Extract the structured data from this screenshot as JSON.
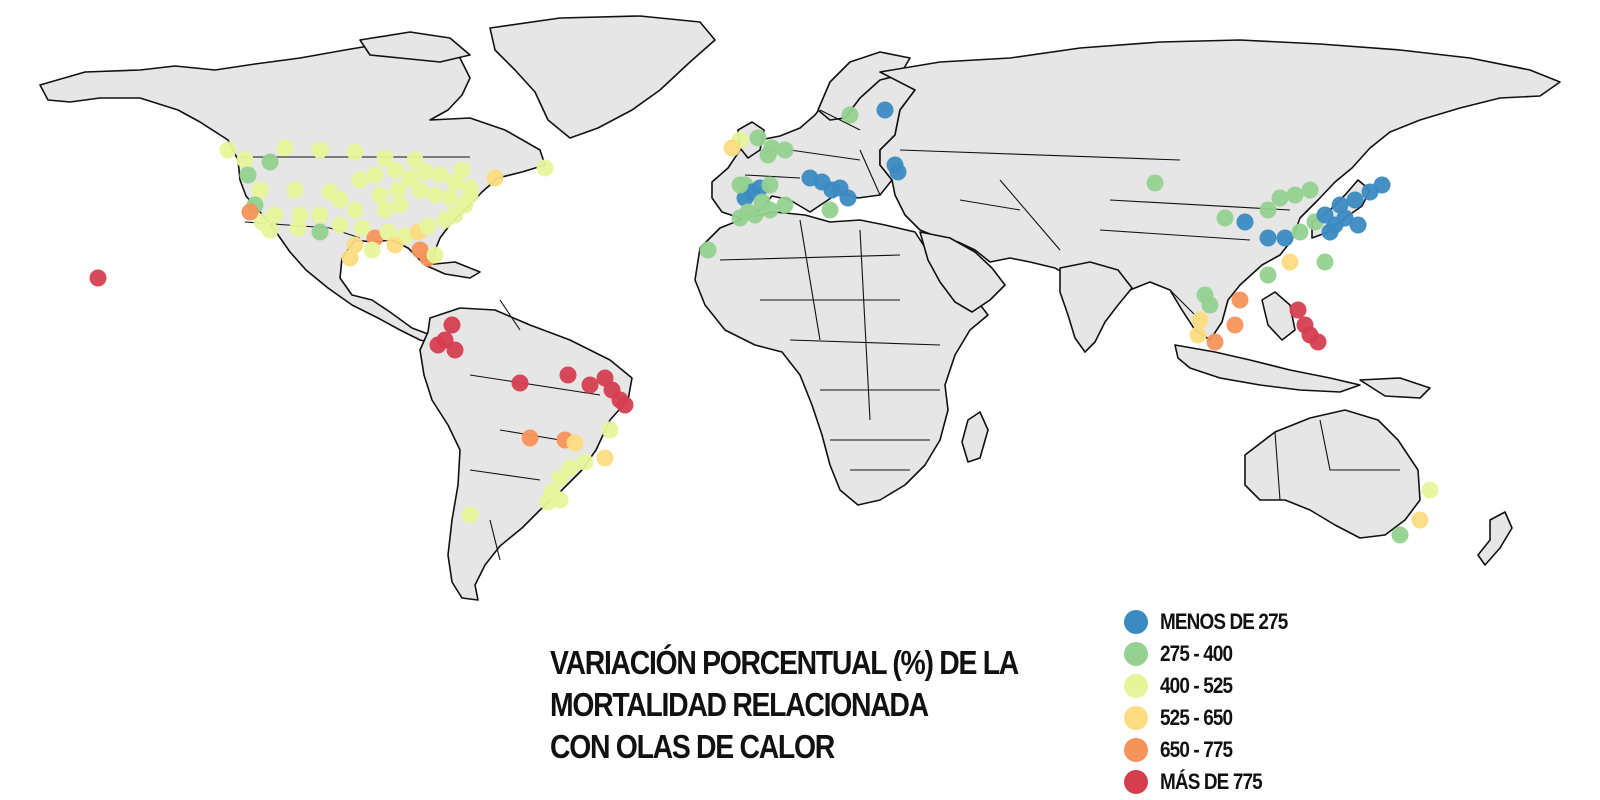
{
  "title_lines": [
    "VARIACIÓN PORCENTUAL (%) DE LA",
    "MORTALIDAD RELACIONADA",
    "CON OLAS DE CALOR"
  ],
  "legend": [
    {
      "label": "MENOS DE 275",
      "color": "#3b8bc2"
    },
    {
      "label": "275 - 400",
      "color": "#95d190"
    },
    {
      "label": "400 - 525",
      "color": "#e6f59a"
    },
    {
      "label": "525 - 650",
      "color": "#fddc82"
    },
    {
      "label": "650 - 775",
      "color": "#f6935a"
    },
    {
      "label": "MÁS DE 775",
      "color": "#d53e4f"
    }
  ]
}
